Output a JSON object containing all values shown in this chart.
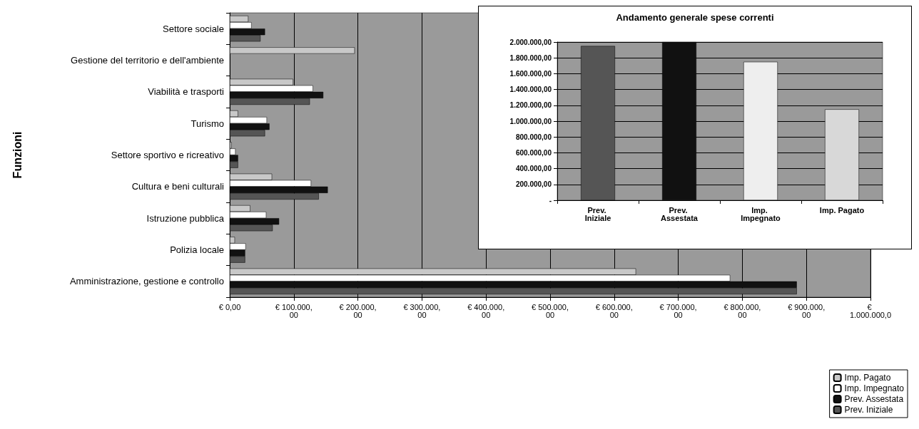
{
  "chart_data": [
    {
      "type": "bar",
      "orientation": "horizontal",
      "ylabel": "Funzioni",
      "categories": [
        "Settore sociale",
        "Gestione del territorio e dell'ambiente",
        "Viabilità e trasporti",
        "Turismo",
        "Settore sportivo e ricreativo",
        "Cultura e beni culturali",
        "Istruzione pubblica",
        "Polizia locale",
        "Amministrazione, gestione e controllo"
      ],
      "series": [
        {
          "name": "Imp. Pagato",
          "color": "#c8c8c8",
          "values": [
            29000,
            195000,
            99000,
            13000,
            3000,
            66000,
            32000,
            8000,
            634000
          ]
        },
        {
          "name": "Imp. Impegnato",
          "color": "#ffffff",
          "values": [
            34000,
            null,
            130000,
            58000,
            9000,
            127000,
            57000,
            25000,
            781000
          ]
        },
        {
          "name": "Prev. Assestata",
          "color": "#111111",
          "values": [
            55000,
            null,
            146000,
            62000,
            13000,
            153000,
            77000,
            24000,
            885000
          ]
        },
        {
          "name": "Prev. Iniziale",
          "color": "#555555",
          "values": [
            48000,
            null,
            125000,
            55000,
            13000,
            139000,
            67000,
            24000,
            885000
          ]
        }
      ],
      "xlim": [
        0,
        1000000
      ],
      "xticks": [
        {
          "value": 0,
          "label": "€ 0,00"
        },
        {
          "value": 100000,
          "label": "€ 100.000,00"
        },
        {
          "value": 200000,
          "label": "€ 200.000,00"
        },
        {
          "value": 300000,
          "label": "€ 300.000,00"
        },
        {
          "value": 400000,
          "label": "€ 400.000,00"
        },
        {
          "value": 500000,
          "label": "€ 500.000,00"
        },
        {
          "value": 600000,
          "label": "€ 600.000,00"
        },
        {
          "value": 700000,
          "label": "€ 700.000,00"
        },
        {
          "value": 800000,
          "label": "€ 800.000,00"
        },
        {
          "value": 900000,
          "label": "€ 900.000,00"
        },
        {
          "value": 1000000,
          "label": "€ 1.000.000,0"
        }
      ],
      "grid": "x",
      "legend": "bottom right"
    },
    {
      "type": "bar",
      "title": "Andamento generale spese correnti",
      "categories": [
        "Prev. Iniziale",
        "Prev. Assestata",
        "Imp. Impegnato",
        "Imp. Pagato"
      ],
      "values": [
        1950000,
        2000000,
        1750000,
        1150000
      ],
      "colors": [
        "#555555",
        "#111111",
        "#eeeeee",
        "#d8d8d8"
      ],
      "ylim": [
        0,
        2000000
      ],
      "yticks": [
        {
          "value": 0,
          "label": "-"
        },
        {
          "value": 200000,
          "label": "200.000,00"
        },
        {
          "value": 400000,
          "label": "400.000,00"
        },
        {
          "value": 600000,
          "label": "600.000,00"
        },
        {
          "value": 800000,
          "label": "800.000,00"
        },
        {
          "value": 1000000,
          "label": "1.000.000,00"
        },
        {
          "value": 1200000,
          "label": "1.200.000,00"
        },
        {
          "value": 1400000,
          "label": "1.400.000,00"
        },
        {
          "value": 1600000,
          "label": "1.600.000,00"
        },
        {
          "value": 1800000,
          "label": "1.800.000,00"
        },
        {
          "value": 2000000,
          "label": "2.000.000,00"
        }
      ],
      "grid": "y",
      "legend": false
    }
  ]
}
